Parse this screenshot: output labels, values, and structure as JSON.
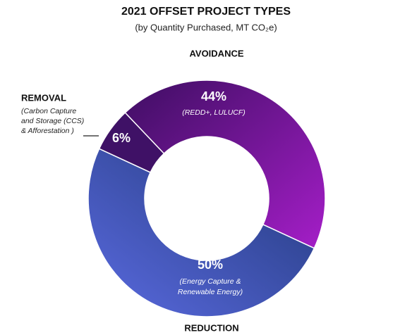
{
  "chart_data": {
    "type": "pie",
    "title": "2021 OFFSET PROJECT TYPES",
    "subtitle": "(by Quantity Purchased, MT CO₂e)",
    "categories": [
      "AVOIDANCE",
      "REDUCTION",
      "REMOVAL"
    ],
    "values": [
      44,
      50,
      6
    ],
    "value_labels": [
      "44%",
      "50%",
      "6%"
    ],
    "descriptions": [
      [
        "(REDD+, LULUCF)"
      ],
      [
        "(Energy Capture &",
        "Renewable Energy)"
      ],
      [
        "(Carbon Capture",
        "and Storage (CCS)",
        "& Afforestation )"
      ]
    ],
    "colors": [
      "#7b1ea6",
      "#3b4ea6",
      "#3f1166"
    ]
  }
}
